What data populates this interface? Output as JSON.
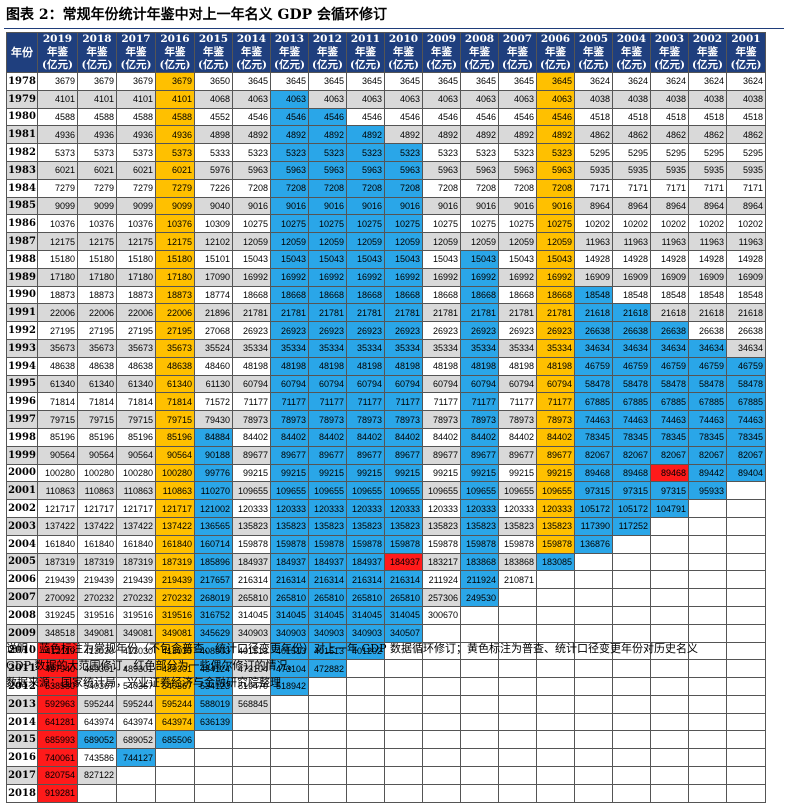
{
  "title": "图表 2：常规年份统计年鉴中对上一年名义 GDP 会循环修订",
  "header": {
    "first_col": "年份",
    "columns": [
      [
        "2019",
        "年鉴",
        "(亿元)"
      ],
      [
        "2018",
        "年鉴",
        "(亿元)"
      ],
      [
        "2017",
        "年鉴",
        "(亿元)"
      ],
      [
        "2016",
        "年鉴",
        "(亿元)"
      ],
      [
        "2015",
        "年鉴",
        "(亿元)"
      ],
      [
        "2014",
        "年鉴",
        "(亿元)"
      ],
      [
        "2013",
        "年鉴",
        "(亿元)"
      ],
      [
        "2012",
        "年鉴",
        "(亿元)"
      ],
      [
        "2011",
        "年鉴",
        "(亿元)"
      ],
      [
        "2010",
        "年鉴",
        "(亿元)"
      ],
      [
        "2009",
        "年鉴",
        "(亿元)"
      ],
      [
        "2008",
        "年鉴",
        "(亿元)"
      ],
      [
        "2007",
        "年鉴",
        "(亿元)"
      ],
      [
        "2006",
        "年鉴",
        "(亿元)"
      ],
      [
        "2005",
        "年鉴",
        "(亿元)"
      ],
      [
        "2004",
        "年鉴",
        "(亿元)"
      ],
      [
        "2003",
        "年鉴",
        "(亿元)"
      ],
      [
        "2002",
        "年鉴",
        "(亿元)"
      ],
      [
        "2001",
        "年鉴",
        "(亿元)"
      ]
    ]
  },
  "colors": {
    "header": "#1f3f7e",
    "gray": "#d9d9d9",
    "yellow": "#ffc000",
    "blue": "#2aa6e8",
    "red": "#ff1a1a",
    "white": "#ffffff"
  },
  "rows": [
    {
      "year": "1978",
      "values": [
        "3679",
        "3679",
        "3679",
        "3679",
        "3650",
        "3645",
        "3645",
        "3645",
        "3645",
        "3645",
        "3645",
        "3645",
        "3645",
        "3645",
        "3624",
        "3624",
        "3624",
        "3624",
        "3624"
      ]
    },
    {
      "year": "1979",
      "values": [
        "4101",
        "4101",
        "4101",
        "4101",
        "4068",
        "4063",
        "4063",
        "4063",
        "4063",
        "4063",
        "4063",
        "4063",
        "4063",
        "4063",
        "4038",
        "4038",
        "4038",
        "4038",
        "4038"
      ]
    },
    {
      "year": "1980",
      "values": [
        "4588",
        "4588",
        "4588",
        "4588",
        "4552",
        "4546",
        "4546",
        "4546",
        "4546",
        "4546",
        "4546",
        "4546",
        "4546",
        "4546",
        "4518",
        "4518",
        "4518",
        "4518",
        "4518"
      ]
    },
    {
      "year": "1981",
      "values": [
        "4936",
        "4936",
        "4936",
        "4936",
        "4898",
        "4892",
        "4892",
        "4892",
        "4892",
        "4892",
        "4892",
        "4892",
        "4892",
        "4892",
        "4862",
        "4862",
        "4862",
        "4862",
        "4862"
      ]
    },
    {
      "year": "1982",
      "values": [
        "5373",
        "5373",
        "5373",
        "5373",
        "5333",
        "5323",
        "5323",
        "5323",
        "5323",
        "5323",
        "5323",
        "5323",
        "5323",
        "5323",
        "5295",
        "5295",
        "5295",
        "5295",
        "5295"
      ]
    },
    {
      "year": "1983",
      "values": [
        "6021",
        "6021",
        "6021",
        "6021",
        "5976",
        "5963",
        "5963",
        "5963",
        "5963",
        "5963",
        "5963",
        "5963",
        "5963",
        "5963",
        "5935",
        "5935",
        "5935",
        "5935",
        "5935"
      ]
    },
    {
      "year": "1984",
      "values": [
        "7279",
        "7279",
        "7279",
        "7279",
        "7226",
        "7208",
        "7208",
        "7208",
        "7208",
        "7208",
        "7208",
        "7208",
        "7208",
        "7208",
        "7171",
        "7171",
        "7171",
        "7171",
        "7171"
      ]
    },
    {
      "year": "1985",
      "values": [
        "9099",
        "9099",
        "9099",
        "9099",
        "9040",
        "9016",
        "9016",
        "9016",
        "9016",
        "9016",
        "9016",
        "9016",
        "9016",
        "9016",
        "8964",
        "8964",
        "8964",
        "8964",
        "8964"
      ]
    },
    {
      "year": "1986",
      "values": [
        "10376",
        "10376",
        "10376",
        "10376",
        "10309",
        "10275",
        "10275",
        "10275",
        "10275",
        "10275",
        "10275",
        "10275",
        "10275",
        "10275",
        "10202",
        "10202",
        "10202",
        "10202",
        "10202"
      ]
    },
    {
      "year": "1987",
      "values": [
        "12175",
        "12175",
        "12175",
        "12175",
        "12102",
        "12059",
        "12059",
        "12059",
        "12059",
        "12059",
        "12059",
        "12059",
        "12059",
        "12059",
        "11963",
        "11963",
        "11963",
        "11963",
        "11963"
      ]
    },
    {
      "year": "1988",
      "values": [
        "15180",
        "15180",
        "15180",
        "15180",
        "15101",
        "15043",
        "15043",
        "15043",
        "15043",
        "15043",
        "15043",
        "15043",
        "15043",
        "15043",
        "14928",
        "14928",
        "14928",
        "14928",
        "14928"
      ]
    },
    {
      "year": "1989",
      "values": [
        "17180",
        "17180",
        "17180",
        "17180",
        "17090",
        "16992",
        "16992",
        "16992",
        "16992",
        "16992",
        "16992",
        "16992",
        "16992",
        "16992",
        "16909",
        "16909",
        "16909",
        "16909",
        "16909"
      ]
    },
    {
      "year": "1990",
      "values": [
        "18873",
        "18873",
        "18873",
        "18873",
        "18774",
        "18668",
        "18668",
        "18668",
        "18668",
        "18668",
        "18668",
        "18668",
        "18668",
        "18668",
        "18548",
        "18548",
        "18548",
        "18548",
        "18548"
      ]
    },
    {
      "year": "1991",
      "values": [
        "22006",
        "22006",
        "22006",
        "22006",
        "21896",
        "21781",
        "21781",
        "21781",
        "21781",
        "21781",
        "21781",
        "21781",
        "21781",
        "21781",
        "21618",
        "21618",
        "21618",
        "21618",
        "21618"
      ]
    },
    {
      "year": "1992",
      "values": [
        "27195",
        "27195",
        "27195",
        "27195",
        "27068",
        "26923",
        "26923",
        "26923",
        "26923",
        "26923",
        "26923",
        "26923",
        "26923",
        "26923",
        "26638",
        "26638",
        "26638",
        "26638",
        "26638"
      ]
    },
    {
      "year": "1993",
      "values": [
        "35673",
        "35673",
        "35673",
        "35673",
        "35524",
        "35334",
        "35334",
        "35334",
        "35334",
        "35334",
        "35334",
        "35334",
        "35334",
        "35334",
        "34634",
        "34634",
        "34634",
        "34634",
        "34634"
      ]
    },
    {
      "year": "1994",
      "values": [
        "48638",
        "48638",
        "48638",
        "48638",
        "48460",
        "48198",
        "48198",
        "48198",
        "48198",
        "48198",
        "48198",
        "48198",
        "48198",
        "48198",
        "46759",
        "46759",
        "46759",
        "46759",
        "46759"
      ]
    },
    {
      "year": "1995",
      "values": [
        "61340",
        "61340",
        "61340",
        "61340",
        "61130",
        "60794",
        "60794",
        "60794",
        "60794",
        "60794",
        "60794",
        "60794",
        "60794",
        "60794",
        "58478",
        "58478",
        "58478",
        "58478",
        "58478"
      ]
    },
    {
      "year": "1996",
      "values": [
        "71814",
        "71814",
        "71814",
        "71814",
        "71572",
        "71177",
        "71177",
        "71177",
        "71177",
        "71177",
        "71177",
        "71177",
        "71177",
        "71177",
        "67885",
        "67885",
        "67885",
        "67885",
        "67885"
      ]
    },
    {
      "year": "1997",
      "values": [
        "79715",
        "79715",
        "79715",
        "79715",
        "79430",
        "78973",
        "78973",
        "78973",
        "78973",
        "78973",
        "78973",
        "78973",
        "78973",
        "78973",
        "74463",
        "74463",
        "74463",
        "74463",
        "74463"
      ]
    },
    {
      "year": "1998",
      "values": [
        "85196",
        "85196",
        "85196",
        "85196",
        "84884",
        "84402",
        "84402",
        "84402",
        "84402",
        "84402",
        "84402",
        "84402",
        "84402",
        "84402",
        "78345",
        "78345",
        "78345",
        "78345",
        "78345"
      ]
    },
    {
      "year": "1999",
      "values": [
        "90564",
        "90564",
        "90564",
        "90564",
        "90188",
        "89677",
        "89677",
        "89677",
        "89677",
        "89677",
        "89677",
        "89677",
        "89677",
        "89677",
        "82067",
        "82067",
        "82067",
        "82067",
        "82067"
      ]
    },
    {
      "year": "2000",
      "values": [
        "100280",
        "100280",
        "100280",
        "100280",
        "99776",
        "99215",
        "99215",
        "99215",
        "99215",
        "99215",
        "99215",
        "99215",
        "99215",
        "99215",
        "89468",
        "89468",
        "89468",
        "89442",
        "89404"
      ]
    },
    {
      "year": "2001",
      "values": [
        "110863",
        "110863",
        "110863",
        "110863",
        "110270",
        "109655",
        "109655",
        "109655",
        "109655",
        "109655",
        "109655",
        "109655",
        "109655",
        "109655",
        "97315",
        "97315",
        "97315",
        "95933",
        ""
      ]
    },
    {
      "year": "2002",
      "values": [
        "121717",
        "121717",
        "121717",
        "121717",
        "121002",
        "120333",
        "120333",
        "120333",
        "120333",
        "120333",
        "120333",
        "120333",
        "120333",
        "120333",
        "105172",
        "105172",
        "104791",
        "",
        ""
      ]
    },
    {
      "year": "2003",
      "values": [
        "137422",
        "137422",
        "137422",
        "137422",
        "136565",
        "135823",
        "135823",
        "135823",
        "135823",
        "135823",
        "135823",
        "135823",
        "135823",
        "135823",
        "117390",
        "117252",
        "",
        "",
        ""
      ]
    },
    {
      "year": "2004",
      "values": [
        "161840",
        "161840",
        "161840",
        "161840",
        "160714",
        "159878",
        "159878",
        "159878",
        "159878",
        "159878",
        "159878",
        "159878",
        "159878",
        "159878",
        "136876",
        "",
        "",
        "",
        ""
      ]
    },
    {
      "year": "2005",
      "values": [
        "187319",
        "187319",
        "187319",
        "187319",
        "185896",
        "184937",
        "184937",
        "184937",
        "184937",
        "184937",
        "183217",
        "183868",
        "183868",
        "183085",
        "",
        "",
        "",
        "",
        ""
      ]
    },
    {
      "year": "2006",
      "values": [
        "219439",
        "219439",
        "219439",
        "219439",
        "217657",
        "216314",
        "216314",
        "216314",
        "216314",
        "216314",
        "211924",
        "211924",
        "210871",
        "",
        "",
        "",
        "",
        "",
        ""
      ]
    },
    {
      "year": "2007",
      "values": [
        "270092",
        "270232",
        "270232",
        "270232",
        "268019",
        "265810",
        "265810",
        "265810",
        "265810",
        "265810",
        "257306",
        "249530",
        "",
        "",
        "",
        "",
        "",
        "",
        ""
      ]
    },
    {
      "year": "2008",
      "values": [
        "319245",
        "319516",
        "319516",
        "319516",
        "316752",
        "314045",
        "314045",
        "314045",
        "314045",
        "314045",
        "300670",
        "",
        "",
        "",
        "",
        "",
        "",
        "",
        ""
      ]
    },
    {
      "year": "2009",
      "values": [
        "348518",
        "349081",
        "349081",
        "349081",
        "345629",
        "340903",
        "340903",
        "340903",
        "340903",
        "340507",
        "",
        "",
        "",
        "",
        "",
        "",
        "",
        "",
        ""
      ]
    },
    {
      "year": "2010",
      "values": [
        "412119",
        "413030",
        "413030",
        "413030",
        "408903",
        "401513",
        "401513",
        "401513",
        "401202",
        "",
        "",
        "",
        "",
        "",
        "",
        "",
        "",
        "",
        ""
      ]
    },
    {
      "year": "2011",
      "values": [
        "487940",
        "489301",
        "489301",
        "489301",
        "484124",
        "473104",
        "473104",
        "472882",
        "",
        "",
        "",
        "",
        "",
        "",
        "",
        "",
        "",
        "",
        ""
      ]
    },
    {
      "year": "2012",
      "values": [
        "538580",
        "540367",
        "540367",
        "540367",
        "534123",
        "519470",
        "518942",
        "",
        "",
        "",
        "",
        "",
        "",
        "",
        "",
        "",
        "",
        "",
        ""
      ]
    },
    {
      "year": "2013",
      "values": [
        "592963",
        "595244",
        "595244",
        "595244",
        "588019",
        "568845",
        "",
        "",
        "",
        "",
        "",
        "",
        "",
        "",
        "",
        "",
        "",
        "",
        ""
      ]
    },
    {
      "year": "2014",
      "values": [
        "641281",
        "643974",
        "643974",
        "643974",
        "636139",
        "",
        "",
        "",
        "",
        "",
        "",
        "",
        "",
        "",
        "",
        "",
        "",
        "",
        ""
      ]
    },
    {
      "year": "2015",
      "values": [
        "685993",
        "689052",
        "689052",
        "685506",
        "",
        "",
        "",
        "",
        "",
        "",
        "",
        "",
        "",
        "",
        "",
        "",
        "",
        "",
        ""
      ]
    },
    {
      "year": "2016",
      "values": [
        "740061",
        "743586",
        "744127",
        "",
        "",
        "",
        "",
        "",
        "",
        "",
        "",
        "",
        "",
        "",
        "",
        "",
        "",
        "",
        ""
      ]
    },
    {
      "year": "2017",
      "values": [
        "820754",
        "827122",
        "",
        "",
        "",
        "",
        "",
        "",
        "",
        "",
        "",
        "",
        "",
        "",
        "",
        "",
        "",
        "",
        ""
      ]
    },
    {
      "year": "2018",
      "values": [
        "919281",
        "",
        "",
        "",
        "",
        "",
        "",
        "",
        "",
        "",
        "",
        "",
        "",
        "",
        "",
        "",
        "",
        "",
        ""
      ]
    }
  ],
  "notes": {
    "line1": "说明：蓝色标注为常规年份（不包含普查、统计口径变更年份）对上一年 GDP 数据循环修订；黄色标注为普查、统计口径变更年份对历史名义",
    "line2": "GDP 数据的大范围修订，红色部分为一些偶尔修订的情况。",
    "line3": "数据来源：国家统计局，兴业证券经济与金融研究院整理"
  }
}
